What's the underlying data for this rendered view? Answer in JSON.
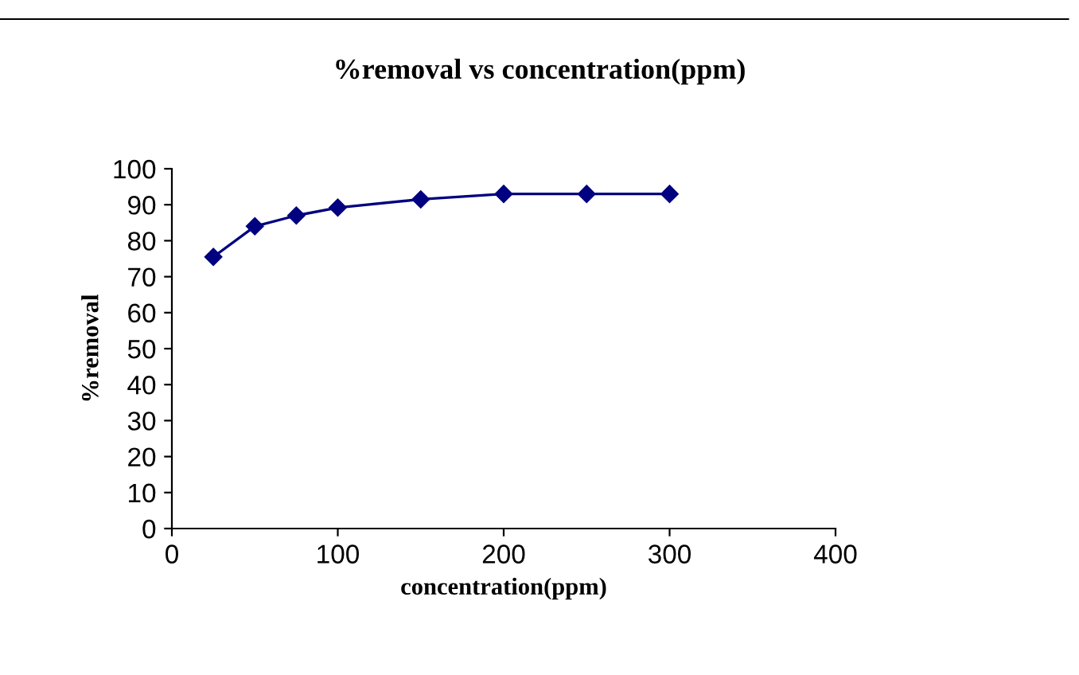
{
  "chart_data": {
    "type": "line",
    "title": "%removal vs concentration(ppm)",
    "xlabel": "concentration(ppm)",
    "ylabel": "%removal",
    "x": [
      25,
      50,
      75,
      100,
      150,
      200,
      250,
      300
    ],
    "series": [
      {
        "color": "#000080",
        "values": [
          75.5,
          84,
          87,
          89.2,
          91.5,
          93,
          93,
          93
        ]
      }
    ],
    "xlim": [
      0,
      400
    ],
    "xticks": [
      0,
      100,
      200,
      300,
      400
    ],
    "ylim": [
      0,
      100
    ],
    "yticks": [
      0,
      10,
      20,
      30,
      40,
      50,
      60,
      70,
      80,
      90,
      100
    ],
    "marker": "diamond",
    "line_style": "solid",
    "grid": false,
    "legend": false
  }
}
